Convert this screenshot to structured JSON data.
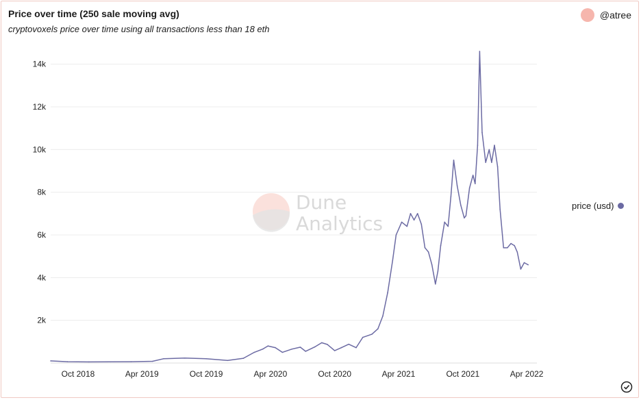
{
  "header": {
    "title": "Price over time (250 sale moving avg)",
    "subtitle": "cryptovoxels price over time using all transactions less than 18 eth",
    "author": "@atree"
  },
  "watermark": {
    "line1": "Dune",
    "line2": "Analytics"
  },
  "colors": {
    "line": "#6b6aa3",
    "avatar": "#f6b6ad",
    "grid": "#ececec"
  },
  "icons": {
    "status": "check-circle-icon"
  },
  "chart_data": {
    "type": "line",
    "title": "Price over time (250 sale moving avg)",
    "subtitle": "cryptovoxels price over time using all transactions less than 18 eth",
    "xlabel": "",
    "ylabel": "",
    "ylim": [
      0,
      14600
    ],
    "xlim": [
      "2018-07-15",
      "2022-04-30"
    ],
    "grid": true,
    "legend_position": "right",
    "y_ticks": [
      {
        "value": 2000,
        "label": "2k"
      },
      {
        "value": 4000,
        "label": "4k"
      },
      {
        "value": 6000,
        "label": "6k"
      },
      {
        "value": 8000,
        "label": "8k"
      },
      {
        "value": 10000,
        "label": "10k"
      },
      {
        "value": 12000,
        "label": "12k"
      },
      {
        "value": 14000,
        "label": "14k"
      }
    ],
    "x_ticks": [
      {
        "value": "2018-10-01",
        "label": "Oct 2018"
      },
      {
        "value": "2019-04-01",
        "label": "Apr 2019"
      },
      {
        "value": "2019-10-01",
        "label": "Oct 2019"
      },
      {
        "value": "2020-04-01",
        "label": "Apr 2020"
      },
      {
        "value": "2020-10-01",
        "label": "Oct 2020"
      },
      {
        "value": "2021-04-01",
        "label": "Apr 2021"
      },
      {
        "value": "2021-10-01",
        "label": "Oct 2021"
      },
      {
        "value": "2022-04-01",
        "label": "Apr 2022"
      }
    ],
    "series": [
      {
        "name": "price (usd)",
        "points": [
          [
            "2018-07-15",
            100
          ],
          [
            "2018-09-01",
            60
          ],
          [
            "2018-11-01",
            50
          ],
          [
            "2019-01-01",
            55
          ],
          [
            "2019-03-01",
            60
          ],
          [
            "2019-05-01",
            80
          ],
          [
            "2019-06-01",
            200
          ],
          [
            "2019-08-01",
            230
          ],
          [
            "2019-10-01",
            200
          ],
          [
            "2019-12-01",
            120
          ],
          [
            "2020-01-15",
            220
          ],
          [
            "2020-02-15",
            500
          ],
          [
            "2020-03-10",
            650
          ],
          [
            "2020-03-25",
            800
          ],
          [
            "2020-04-15",
            720
          ],
          [
            "2020-05-05",
            500
          ],
          [
            "2020-06-01",
            650
          ],
          [
            "2020-06-25",
            740
          ],
          [
            "2020-07-10",
            550
          ],
          [
            "2020-08-05",
            750
          ],
          [
            "2020-08-25",
            950
          ],
          [
            "2020-09-10",
            870
          ],
          [
            "2020-10-01",
            580
          ],
          [
            "2020-10-20",
            720
          ],
          [
            "2020-11-10",
            880
          ],
          [
            "2020-12-01",
            720
          ],
          [
            "2020-12-20",
            1200
          ],
          [
            "2021-01-15",
            1350
          ],
          [
            "2021-02-01",
            1600
          ],
          [
            "2021-02-15",
            2200
          ],
          [
            "2021-03-01",
            3300
          ],
          [
            "2021-03-15",
            4800
          ],
          [
            "2021-03-25",
            6000
          ],
          [
            "2021-04-10",
            6600
          ],
          [
            "2021-04-25",
            6400
          ],
          [
            "2021-05-05",
            7000
          ],
          [
            "2021-05-15",
            6700
          ],
          [
            "2021-05-25",
            7000
          ],
          [
            "2021-06-05",
            6500
          ],
          [
            "2021-06-15",
            5400
          ],
          [
            "2021-06-25",
            5200
          ],
          [
            "2021-07-05",
            4600
          ],
          [
            "2021-07-15",
            3700
          ],
          [
            "2021-07-22",
            4300
          ],
          [
            "2021-07-30",
            5500
          ],
          [
            "2021-08-10",
            6600
          ],
          [
            "2021-08-20",
            6400
          ],
          [
            "2021-08-28",
            7800
          ],
          [
            "2021-09-05",
            9500
          ],
          [
            "2021-09-15",
            8300
          ],
          [
            "2021-09-25",
            7400
          ],
          [
            "2021-10-05",
            6800
          ],
          [
            "2021-10-10",
            6900
          ],
          [
            "2021-10-20",
            8200
          ],
          [
            "2021-10-30",
            8800
          ],
          [
            "2021-11-05",
            8400
          ],
          [
            "2021-11-12",
            10200
          ],
          [
            "2021-11-18",
            14600
          ],
          [
            "2021-11-25",
            10800
          ],
          [
            "2021-12-05",
            9400
          ],
          [
            "2021-12-15",
            10000
          ],
          [
            "2021-12-22",
            9400
          ],
          [
            "2021-12-30",
            10200
          ],
          [
            "2022-01-08",
            9200
          ],
          [
            "2022-01-15",
            7200
          ],
          [
            "2022-01-25",
            5400
          ],
          [
            "2022-02-05",
            5400
          ],
          [
            "2022-02-15",
            5600
          ],
          [
            "2022-02-25",
            5500
          ],
          [
            "2022-03-05",
            5200
          ],
          [
            "2022-03-15",
            4400
          ],
          [
            "2022-03-25",
            4700
          ],
          [
            "2022-04-05",
            4600
          ]
        ]
      }
    ]
  }
}
